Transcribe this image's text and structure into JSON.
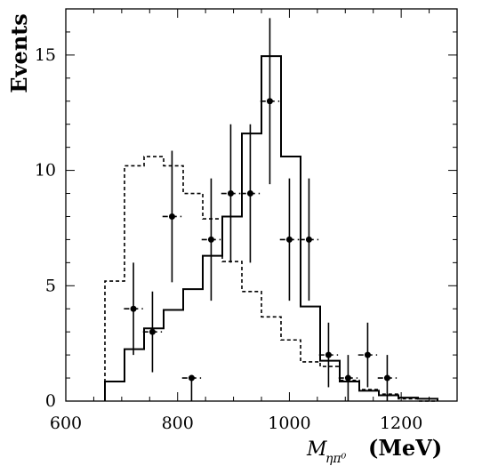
{
  "chart_data": {
    "type": "histogram",
    "xlim": [
      600,
      1300
    ],
    "ylim": [
      0,
      17
    ],
    "xticks": [
      600,
      800,
      1000,
      1200
    ],
    "yticks": [
      0,
      5,
      10,
      15
    ],
    "ylabel": "Events",
    "xlabel": {
      "symbol": "M",
      "subscript": "ηπ⁰",
      "unit": "(MeV)"
    },
    "bin_edges": [
      670,
      705,
      740,
      775,
      810,
      845,
      880,
      915,
      950,
      985,
      1020,
      1055,
      1090,
      1125,
      1160,
      1195,
      1230,
      1265
    ],
    "series": [
      {
        "style": "solid",
        "values": [
          0.85,
          2.25,
          3.15,
          3.95,
          4.85,
          6.3,
          8.0,
          11.6,
          14.95,
          10.6,
          4.1,
          1.75,
          0.85,
          0.45,
          0.25,
          0.15,
          0.1
        ]
      },
      {
        "style": "dashed",
        "values": [
          5.2,
          10.2,
          10.6,
          10.2,
          9.0,
          7.9,
          6.05,
          4.75,
          3.65,
          2.65,
          1.7,
          1.5,
          0.9,
          0.5,
          0.3,
          0.1,
          0.0
        ]
      }
    ],
    "points": [
      {
        "x": 721,
        "y": 4,
        "xerr": 17,
        "yerr_lo": 2,
        "yerr_hi": 2
      },
      {
        "x": 755,
        "y": 3,
        "xerr": 17,
        "yerr_lo": 1.75,
        "yerr_hi": 1.75
      },
      {
        "x": 790,
        "y": 8,
        "xerr": 17,
        "yerr_lo": 2.85,
        "yerr_hi": 2.85
      },
      {
        "x": 825,
        "y": 1,
        "xerr": 17,
        "yerr_lo": 1,
        "yerr_hi": 0
      },
      {
        "x": 860,
        "y": 7,
        "xerr": 17,
        "yerr_lo": 2.65,
        "yerr_hi": 2.65
      },
      {
        "x": 895,
        "y": 9,
        "xerr": 17,
        "yerr_lo": 3,
        "yerr_hi": 3
      },
      {
        "x": 930,
        "y": 9,
        "xerr": 17,
        "yerr_lo": 3,
        "yerr_hi": 3
      },
      {
        "x": 965,
        "y": 13,
        "xerr": 17,
        "yerr_lo": 3.6,
        "yerr_hi": 3.6
      },
      {
        "x": 1000,
        "y": 7,
        "xerr": 17,
        "yerr_lo": 2.65,
        "yerr_hi": 2.65
      },
      {
        "x": 1035,
        "y": 7,
        "xerr": 17,
        "yerr_lo": 2.65,
        "yerr_hi": 2.65
      },
      {
        "x": 1070,
        "y": 2,
        "xerr": 17,
        "yerr_lo": 1.4,
        "yerr_hi": 1.4
      },
      {
        "x": 1105,
        "y": 1,
        "xerr": 17,
        "yerr_lo": 1,
        "yerr_hi": 1
      },
      {
        "x": 1140,
        "y": 2,
        "xerr": 17,
        "yerr_lo": 1.4,
        "yerr_hi": 1.4
      },
      {
        "x": 1175,
        "y": 1,
        "xerr": 17,
        "yerr_lo": 1,
        "yerr_hi": 1
      }
    ]
  }
}
